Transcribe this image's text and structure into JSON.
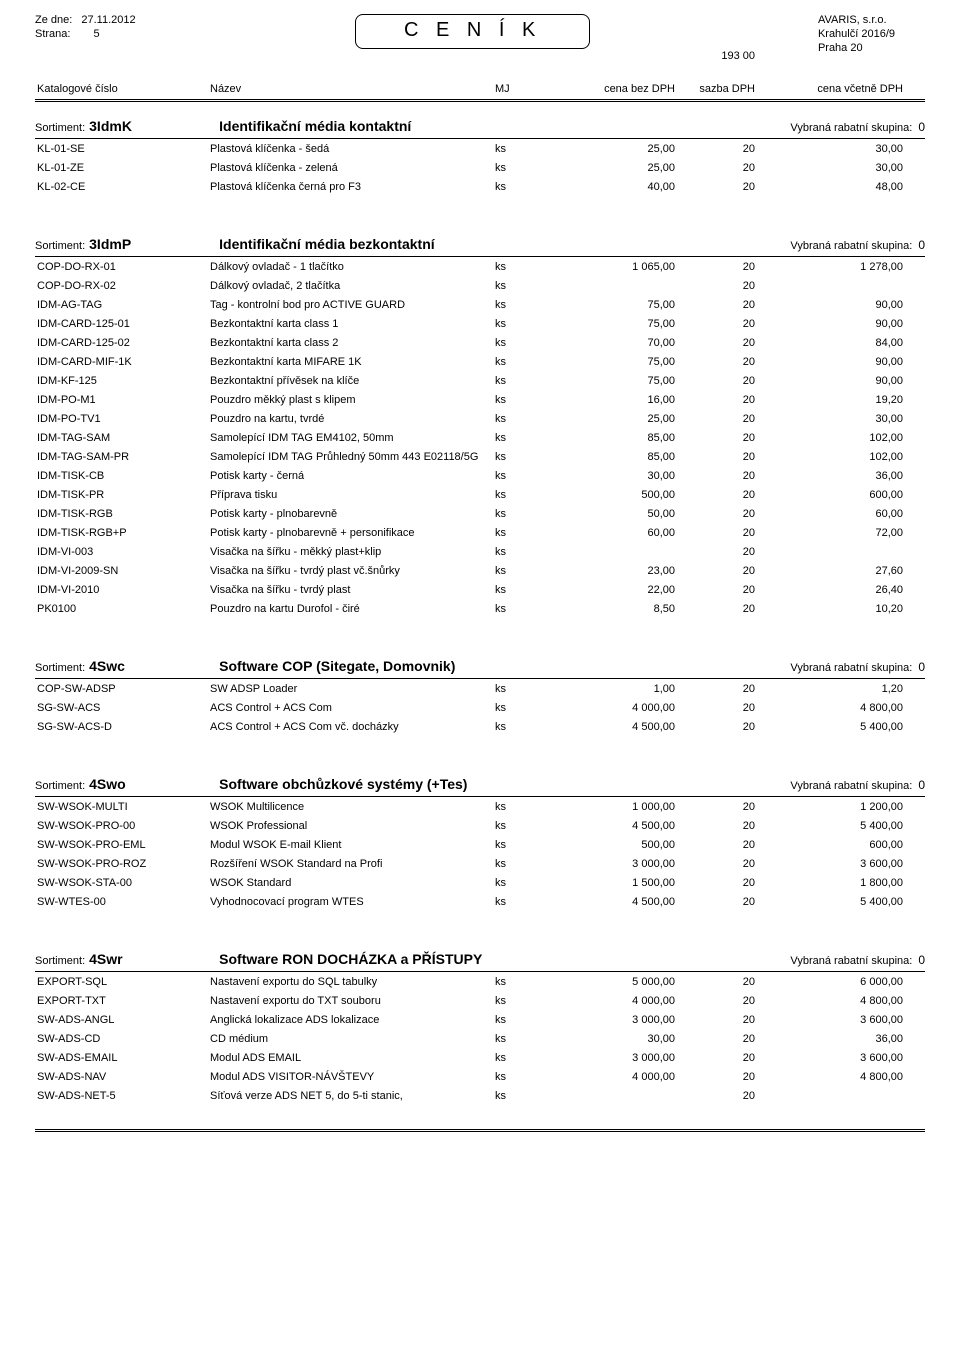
{
  "header": {
    "date_label": "Ze dne:",
    "date_value": "27.11.2012",
    "page_label": "Strana:",
    "page_value": "5",
    "title": "C E N Í K",
    "company": "AVARIS, s.r.o.",
    "addr1": "Krahulčí 2016/9",
    "addr2": "Praha 20",
    "postcode": "193 00"
  },
  "columns": {
    "c1": "Katalogové číslo",
    "c2": "Název",
    "c3": "MJ",
    "c4": "cena bez DPH",
    "c5": "sazba DPH",
    "c6": "cena včetně DPH"
  },
  "sortiment_label": "Sortiment:",
  "group_label": "Vybraná rabatní skupina:",
  "sections": [
    {
      "code": "3IdmK",
      "title": "Identifikační média kontaktní",
      "group": "0",
      "rows": [
        [
          "KL-01-SE",
          "Plastová klíčenka - šedá",
          "ks",
          "25,00",
          "20",
          "30,00"
        ],
        [
          "KL-01-ZE",
          "Plastová klíčenka - zelená",
          "ks",
          "25,00",
          "20",
          "30,00"
        ],
        [
          "KL-02-CE",
          "Plastová klíčenka černá pro F3",
          "ks",
          "40,00",
          "20",
          "48,00"
        ]
      ]
    },
    {
      "code": "3IdmP",
      "title": "Identifikační média bezkontaktní",
      "group": "0",
      "rows": [
        [
          "COP-DO-RX-01",
          "Dálkový ovladač - 1 tlačítko",
          "ks",
          "1 065,00",
          "20",
          "1 278,00"
        ],
        [
          "COP-DO-RX-02",
          "Dálkový ovladač, 2 tlačítka",
          "ks",
          "",
          "20",
          ""
        ],
        [
          "IDM-AG-TAG",
          "Tag - kontrolní bod pro ACTIVE GUARD",
          "ks",
          "75,00",
          "20",
          "90,00"
        ],
        [
          "IDM-CARD-125-01",
          "Bezkontaktní karta class 1",
          "ks",
          "75,00",
          "20",
          "90,00"
        ],
        [
          "IDM-CARD-125-02",
          "Bezkontaktní karta class 2",
          "ks",
          "70,00",
          "20",
          "84,00"
        ],
        [
          "IDM-CARD-MIF-1K",
          "Bezkontaktní karta MIFARE 1K",
          "ks",
          "75,00",
          "20",
          "90,00"
        ],
        [
          "IDM-KF-125",
          "Bezkontaktní přívěsek na klíče",
          "ks",
          "75,00",
          "20",
          "90,00"
        ],
        [
          "IDM-PO-M1",
          "Pouzdro měkký plast s klipem",
          "ks",
          "16,00",
          "20",
          "19,20"
        ],
        [
          "IDM-PO-TV1",
          "Pouzdro na kartu, tvrdé",
          "ks",
          "25,00",
          "20",
          "30,00"
        ],
        [
          "IDM-TAG-SAM",
          "Samolepící IDM TAG EM4102, 50mm",
          "ks",
          "85,00",
          "20",
          "102,00"
        ],
        [
          "IDM-TAG-SAM-PR",
          "Samolepící IDM TAG Průhledný 50mm 443 E02118/5G",
          "ks",
          "85,00",
          "20",
          "102,00"
        ],
        [
          "IDM-TISK-CB",
          "Potisk karty - černá",
          "ks",
          "30,00",
          "20",
          "36,00"
        ],
        [
          "IDM-TISK-PR",
          "Příprava tisku",
          "ks",
          "500,00",
          "20",
          "600,00"
        ],
        [
          "IDM-TISK-RGB",
          "Potisk karty - plnobarevně",
          "ks",
          "50,00",
          "20",
          "60,00"
        ],
        [
          "IDM-TISK-RGB+P",
          "Potisk karty - plnobarevně + personifikace",
          "ks",
          "60,00",
          "20",
          "72,00"
        ],
        [
          "IDM-VI-003",
          "Visačka na šířku - měkký plast+klip",
          "ks",
          "",
          "20",
          ""
        ],
        [
          "IDM-VI-2009-SN",
          "Visačka na šířku - tvrdý plast vč.šnůrky",
          "ks",
          "23,00",
          "20",
          "27,60"
        ],
        [
          "IDM-VI-2010",
          "Visačka na šířku - tvrdý plast",
          "ks",
          "22,00",
          "20",
          "26,40"
        ],
        [
          "PK0100",
          "Pouzdro na kartu Durofol - čiré",
          "ks",
          "8,50",
          "20",
          "10,20"
        ]
      ]
    },
    {
      "code": "4Swc",
      "title": "Software COP (Sitegate, Domovnik)",
      "group": "0",
      "rows": [
        [
          "COP-SW-ADSP",
          "SW ADSP Loader",
          "ks",
          "1,00",
          "20",
          "1,20"
        ],
        [
          "SG-SW-ACS",
          "ACS Control + ACS Com",
          "ks",
          "4 000,00",
          "20",
          "4 800,00"
        ],
        [
          "SG-SW-ACS-D",
          "ACS Control + ACS Com vč. docházky",
          "ks",
          "4 500,00",
          "20",
          "5 400,00"
        ]
      ]
    },
    {
      "code": "4Swo",
      "title": "Software obchůzkové systémy (+Tes)",
      "group": "0",
      "rows": [
        [
          "SW-WSOK-MULTI",
          "WSOK Multilicence",
          "ks",
          "1 000,00",
          "20",
          "1 200,00"
        ],
        [
          "SW-WSOK-PRO-00",
          "WSOK Professional",
          "ks",
          "4 500,00",
          "20",
          "5 400,00"
        ],
        [
          "SW-WSOK-PRO-EML",
          "Modul WSOK E-mail Klient",
          "ks",
          "500,00",
          "20",
          "600,00"
        ],
        [
          "SW-WSOK-PRO-ROZ",
          "Rozšíření WSOK Standard na Profi",
          "ks",
          "3 000,00",
          "20",
          "3 600,00"
        ],
        [
          "SW-WSOK-STA-00",
          "WSOK Standard",
          "ks",
          "1 500,00",
          "20",
          "1 800,00"
        ],
        [
          "SW-WTES-00",
          "Vyhodnocovací program WTES",
          "ks",
          "4 500,00",
          "20",
          "5 400,00"
        ]
      ]
    },
    {
      "code": "4Swr",
      "title": "Software RON DOCHÁZKA a PŘÍSTUPY",
      "group": "0",
      "rows": [
        [
          "EXPORT-SQL",
          "Nastavení exportu do SQL tabulky",
          "ks",
          "5 000,00",
          "20",
          "6 000,00"
        ],
        [
          "EXPORT-TXT",
          "Nastavení exportu do TXT souboru",
          "ks",
          "4 000,00",
          "20",
          "4 800,00"
        ],
        [
          "SW-ADS-ANGL",
          "Anglická lokalizace ADS lokalizace",
          "ks",
          "3 000,00",
          "20",
          "3 600,00"
        ],
        [
          "SW-ADS-CD",
          "CD médium",
          "ks",
          "30,00",
          "20",
          "36,00"
        ],
        [
          "SW-ADS-EMAIL",
          "Modul ADS EMAIL",
          "ks",
          "3 000,00",
          "20",
          "3 600,00"
        ],
        [
          "SW-ADS-NAV",
          "Modul ADS VISITOR-NÁVŠTEVY",
          "ks",
          "4 000,00",
          "20",
          "4 800,00"
        ],
        [
          "SW-ADS-NET-5",
          "Síťová verze ADS NET 5, do 5-ti stanic,",
          "ks",
          "",
          "20",
          ""
        ]
      ]
    }
  ]
}
